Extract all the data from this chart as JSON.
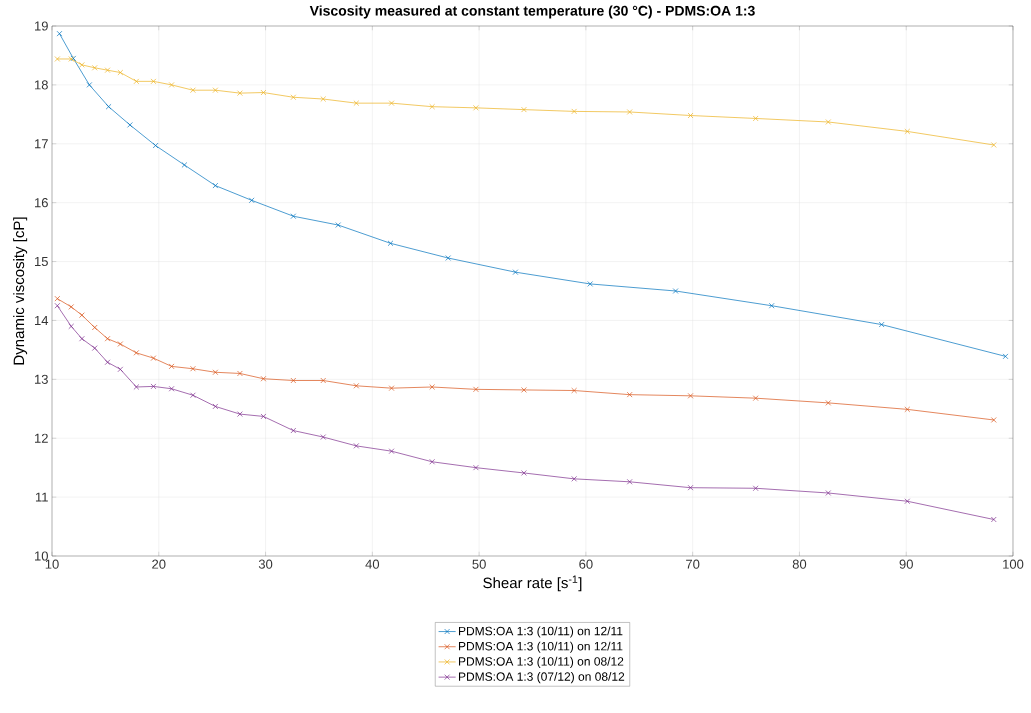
{
  "chart_data": {
    "type": "line",
    "title": "Viscosity measured at constant temperature (30 °C) - PDMS:OA 1:3",
    "xlabel": "Shear rate [s$^{-1}$]",
    "ylabel": "Dynamic viscosity [cP]",
    "xlim": [
      10,
      100
    ],
    "xticks": [
      10,
      20,
      30,
      40,
      50,
      60,
      70,
      80,
      90,
      100
    ],
    "ylim": [
      10,
      19
    ],
    "yticks": [
      10,
      11,
      12,
      13,
      14,
      15,
      16,
      17,
      18,
      19
    ],
    "grid": true,
    "legend": "bottom",
    "marker": "cross",
    "line_style": "solid",
    "series": [
      {
        "name": "PDMS:OA 1:3 (10/11) on 12/11",
        "color": "#0072bd",
        "x": [
          10.7,
          12,
          13.5,
          15.3,
          17.3,
          19.7,
          22.4,
          25.3,
          28.7,
          32.6,
          36.8,
          41.7,
          47.1,
          53.4,
          60.4,
          68.4,
          77.4,
          87.7,
          99.3
        ],
        "values": [
          18.87,
          18.45,
          18.0,
          17.63,
          17.32,
          16.97,
          16.64,
          16.29,
          16.04,
          15.77,
          15.62,
          15.31,
          15.06,
          14.82,
          14.62,
          14.5,
          14.25,
          13.93,
          13.39
        ]
      },
      {
        "name": "PDMS:OA 1:3 (10/11) on 12/11",
        "color": "#d95319",
        "x": [
          10.5,
          11.8,
          12.8,
          14,
          15.2,
          16.4,
          17.9,
          19.5,
          21.2,
          23.2,
          25.3,
          27.6,
          29.8,
          32.6,
          35.4,
          38.5,
          41.8,
          45.6,
          49.7,
          54.2,
          58.9,
          64.1,
          69.8,
          75.9,
          82.7,
          90.1,
          98.2
        ],
        "values": [
          14.37,
          14.23,
          14.09,
          13.88,
          13.69,
          13.6,
          13.45,
          13.36,
          13.22,
          13.18,
          13.12,
          13.1,
          13.01,
          12.98,
          12.98,
          12.89,
          12.85,
          12.87,
          12.83,
          12.82,
          12.81,
          12.74,
          12.72,
          12.68,
          12.6,
          12.49,
          12.31
        ]
      },
      {
        "name": "PDMS:OA 1:3 (10/11) on 08/12",
        "color": "#edb120",
        "x": [
          10.5,
          11.8,
          12.8,
          14,
          15.2,
          16.4,
          17.9,
          19.5,
          21.2,
          23.2,
          25.3,
          27.6,
          29.8,
          32.6,
          35.4,
          38.5,
          41.8,
          45.6,
          49.7,
          54.2,
          58.9,
          64.1,
          69.8,
          75.9,
          82.7,
          90.1,
          98.2
        ],
        "values": [
          18.44,
          18.44,
          18.34,
          18.29,
          18.25,
          18.21,
          18.06,
          18.06,
          18.0,
          17.91,
          17.91,
          17.86,
          17.87,
          17.79,
          17.76,
          17.69,
          17.69,
          17.63,
          17.61,
          17.58,
          17.55,
          17.54,
          17.48,
          17.43,
          17.37,
          17.21,
          16.98
        ]
      },
      {
        "name": "PDMS:OA 1:3 (07/12) on 08/12",
        "color": "#7e2f8e",
        "x": [
          10.5,
          11.8,
          12.8,
          14,
          15.2,
          16.4,
          17.9,
          19.5,
          21.2,
          23.2,
          25.3,
          27.6,
          29.8,
          32.6,
          35.4,
          38.5,
          41.8,
          45.6,
          49.7,
          54.2,
          58.9,
          64.1,
          69.8,
          75.9,
          82.7,
          90.1,
          98.2
        ],
        "values": [
          14.25,
          13.9,
          13.69,
          13.53,
          13.29,
          13.17,
          12.87,
          12.88,
          12.84,
          12.73,
          12.54,
          12.41,
          12.37,
          12.13,
          12.02,
          11.87,
          11.78,
          11.6,
          11.5,
          11.41,
          11.31,
          11.26,
          11.16,
          11.15,
          11.07,
          10.93,
          10.62
        ]
      }
    ]
  }
}
